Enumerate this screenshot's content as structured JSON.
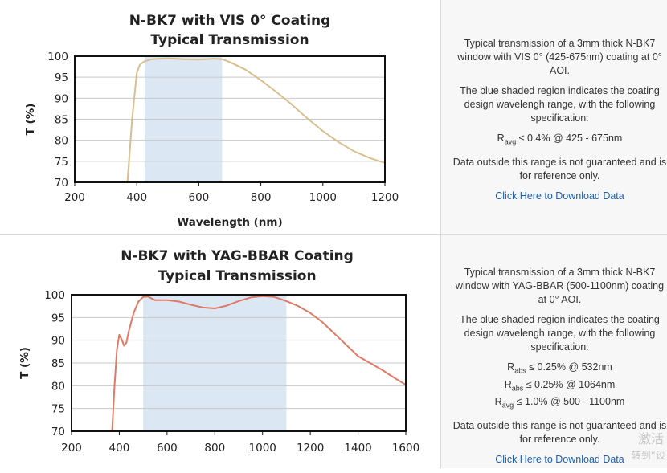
{
  "rows": [
    {
      "description": "Typical transmission of a 3mm thick N-BK7 window with VIS 0° (425-675nm) coating at 0° AOI.",
      "shading_note": "The blue shaded region indicates the coating design wavelengh range, with the following specification:",
      "specs": [
        {
          "sym": "R",
          "sub": "avg",
          "text": "≤ 0.4% @ 425 - 675nm"
        }
      ],
      "disclaimer": "Data outside this range is not guaranteed and is for reference only.",
      "link": "Click Here to Download Data"
    },
    {
      "description": "Typical transmission of a 3mm thick N-BK7 window with YAG-BBAR (500-1100nm) coating at 0° AOI.",
      "shading_note": "The blue shaded region indicates the coating design wavelengh range, with the following specification:",
      "specs": [
        {
          "sym": "R",
          "sub": "abs",
          "text": "≤ 0.25% @ 532nm"
        },
        {
          "sym": "R",
          "sub": "abs",
          "text": "≤ 0.25% @ 1064nm"
        },
        {
          "sym": "R",
          "sub": "avg",
          "text": "≤ 1.0% @ 500 - 1100nm"
        }
      ],
      "disclaimer": "Data outside this range is not guaranteed and is for reference only.",
      "link": "Click Here to Download Data"
    }
  ],
  "watermark": {
    "line1": "激活",
    "line2": "转到“设"
  },
  "colors": {
    "vis_curve": "#d9bf8e",
    "yag_curve": "#e07a64",
    "band": "#dbe8f4",
    "grid": "#c9c9c9"
  },
  "chart_data": [
    {
      "type": "line",
      "title": [
        "N-BK7 with VIS 0° Coating",
        "Typical Transmission"
      ],
      "xlabel": "Wavelength (nm)",
      "ylabel": "T (%)",
      "xlim": [
        200,
        1200
      ],
      "ylim": [
        70,
        100
      ],
      "xticks": [
        200,
        400,
        600,
        800,
        1000,
        1200
      ],
      "yticks": [
        70,
        75,
        80,
        85,
        90,
        95,
        100
      ],
      "grid": true,
      "shaded_band": [
        425,
        675
      ],
      "series": [
        {
          "x": [
            370,
            385,
            400,
            410,
            425,
            450,
            500,
            550,
            600,
            650,
            675,
            700,
            750,
            800,
            850,
            900,
            950,
            1000,
            1050,
            1100,
            1150,
            1200
          ],
          "y": [
            70,
            85,
            96,
            98,
            98.8,
            99.3,
            99.5,
            99.3,
            99.2,
            99.4,
            99.3,
            98.6,
            96.8,
            94.3,
            91.5,
            88.5,
            85.2,
            82.2,
            79.6,
            77.4,
            75.8,
            74.6
          ]
        }
      ]
    },
    {
      "type": "line",
      "title": [
        "N-BK7 with YAG-BBAR Coating",
        "Typical Transmission"
      ],
      "xlabel": "",
      "ylabel": "T (%)",
      "xlim": [
        200,
        1600
      ],
      "ylim": [
        70,
        100
      ],
      "xticks": [
        200,
        400,
        600,
        800,
        1000,
        1200,
        1400,
        1600
      ],
      "yticks": [
        70,
        75,
        80,
        85,
        90,
        95,
        100
      ],
      "grid": true,
      "shaded_band": [
        500,
        1100
      ],
      "series": [
        {
          "x": [
            370,
            380,
            390,
            400,
            410,
            420,
            430,
            440,
            460,
            480,
            500,
            520,
            550,
            600,
            650,
            700,
            750,
            800,
            850,
            900,
            950,
            1000,
            1050,
            1100,
            1150,
            1200,
            1250,
            1300,
            1350,
            1400,
            1450,
            1500,
            1550,
            1600
          ],
          "y": [
            70,
            80,
            88,
            91.2,
            90.2,
            88.8,
            89.5,
            92,
            96,
            98.5,
            99.5,
            99.6,
            98.8,
            98.8,
            98.5,
            97.8,
            97.2,
            97,
            97.6,
            98.6,
            99.4,
            99.7,
            99.5,
            98.6,
            97.5,
            96,
            94,
            91.5,
            89,
            86.5,
            85,
            83.5,
            81.8,
            80.2
          ]
        }
      ]
    }
  ]
}
